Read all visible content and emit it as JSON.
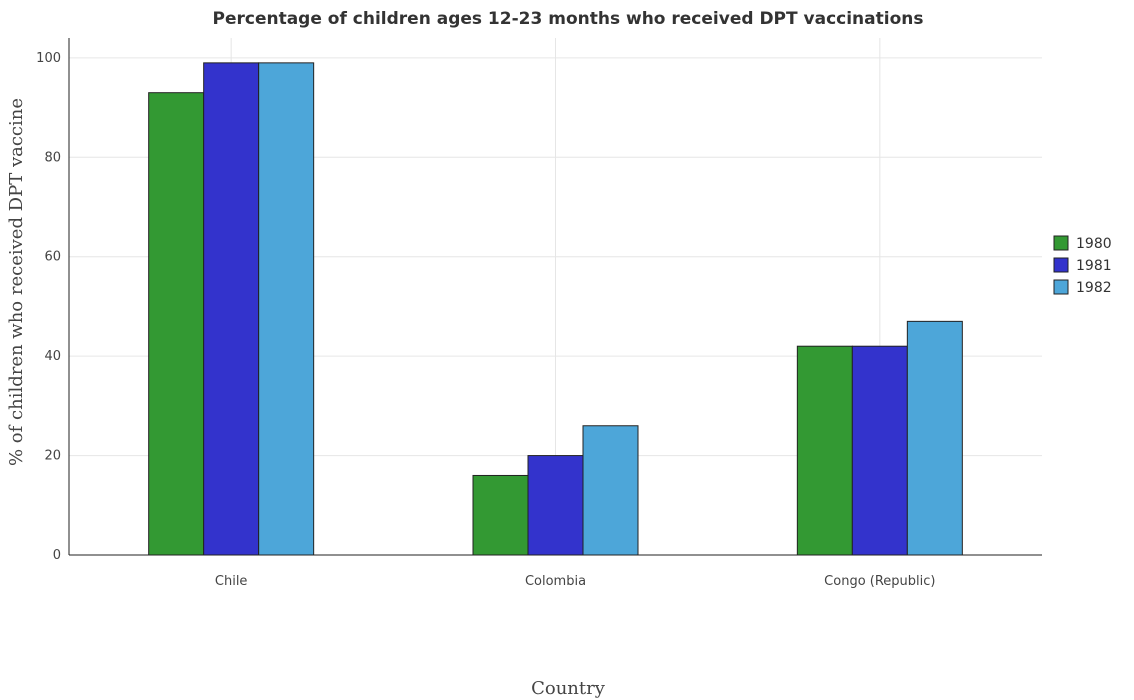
{
  "chart_data": {
    "type": "bar",
    "title": "Percentage of children ages 12-23 months who received DPT vaccinations",
    "xlabel": "Country",
    "ylabel": "% of children who received DPT vaccine",
    "categories": [
      "Chile",
      "Colombia",
      "Congo (Republic)"
    ],
    "series": [
      {
        "name": "1980",
        "color": "#339933",
        "values": [
          93,
          16,
          42
        ]
      },
      {
        "name": "1981",
        "color": "#3333cc",
        "values": [
          99,
          20,
          42
        ]
      },
      {
        "name": "1982",
        "color": "#4da6d9",
        "values": [
          99,
          26,
          47
        ]
      }
    ],
    "ylim": [
      0,
      104
    ],
    "yticks": [
      0,
      20,
      40,
      60,
      80,
      100
    ],
    "grid": true,
    "legend": "right"
  }
}
